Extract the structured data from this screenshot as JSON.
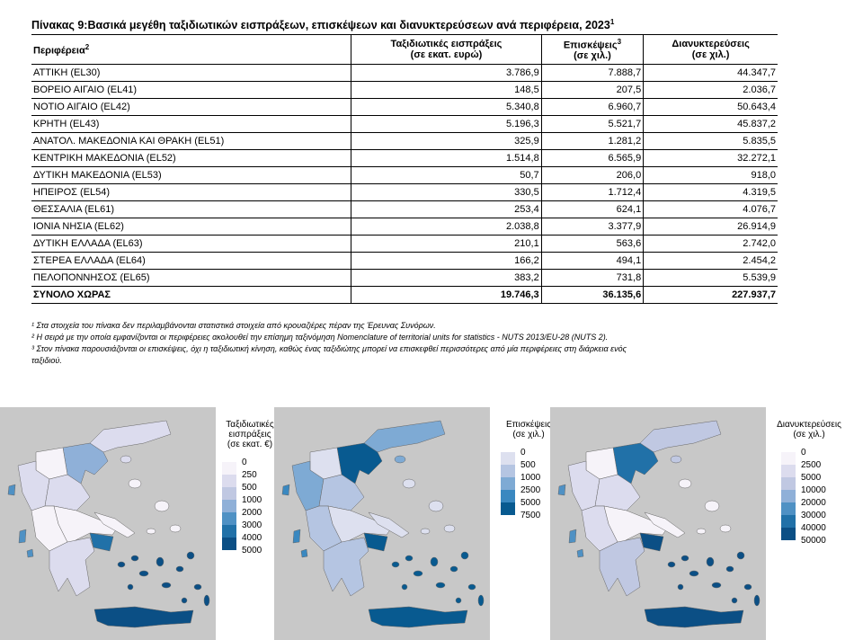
{
  "title": "Πίνακας 9:Βασικά μεγέθη ταξιδιωτικών εισπράξεων, επισκέψεων και διανυκτερεύσεων ανά περιφέρεια, 2023",
  "title_sup": "1",
  "table": {
    "header": [
      {
        "text": "Περιφέρεια",
        "sup": "2"
      },
      {
        "lines": [
          "Ταξιδιωτικές εισπράξεις",
          "(σε εκατ. ευρώ)"
        ]
      },
      {
        "lines": [
          "Επισκέψεις",
          "(σε χιλ.)"
        ],
        "sup": "3"
      },
      {
        "lines": [
          "Διανυκτερεύσεις",
          "(σε χιλ.)"
        ]
      }
    ],
    "rows": [
      [
        "ΑΤΤΙΚΗ (EL30)",
        "3.786,9",
        "7.888,7",
        "44.347,7"
      ],
      [
        "ΒΟΡΕΙΟ ΑΙΓΑΙΟ (EL41)",
        "148,5",
        "207,5",
        "2.036,7"
      ],
      [
        "ΝΟΤΙΟ ΑΙΓΑΙΟ (EL42)",
        "5.340,8",
        "6.960,7",
        "50.643,4"
      ],
      [
        "ΚΡΗΤΗ (EL43)",
        "5.196,3",
        "5.521,7",
        "45.837,2"
      ],
      [
        "ΑΝΑΤΟΛ. ΜΑΚΕΔΟΝΙΑ ΚΑΙ ΘΡΑΚΗ (EL51)",
        "325,9",
        "1.281,2",
        "5.835,5"
      ],
      [
        "ΚΕΝΤΡΙΚΗ ΜΑΚΕΔΟΝΙΑ (EL52)",
        "1.514,8",
        "6.565,9",
        "32.272,1"
      ],
      [
        "ΔΥΤΙΚΗ ΜΑΚΕΔΟΝΙΑ (EL53)",
        "50,7",
        "206,0",
        "918,0"
      ],
      [
        "ΗΠΕΙΡΟΣ (EL54)",
        "330,5",
        "1.712,4",
        "4.319,5"
      ],
      [
        "ΘΕΣΣΑΛΙΑ (EL61)",
        "253,4",
        "624,1",
        "4.076,7"
      ],
      [
        "ΙΟΝΙΑ ΝΗΣΙΑ (EL62)",
        "2.038,8",
        "3.377,9",
        "26.914,9"
      ],
      [
        "ΔΥΤΙΚΗ ΕΛΛΑΔΑ (EL63)",
        "210,1",
        "563,6",
        "2.742,0"
      ],
      [
        "ΣΤΕΡΕΑ ΕΛΛΑΔΑ (EL64)",
        "166,2",
        "494,1",
        "2.454,2"
      ],
      [
        "ΠΕΛΟΠΟΝΝΗΣΟΣ (EL65)",
        "383,2",
        "731,8",
        "5.539,9"
      ]
    ],
    "total": [
      "ΣΥΝΟΛΟ ΧΩΡΑΣ",
      "19.746,3",
      "36.135,6",
      "227.937,7"
    ]
  },
  "footnotes": [
    "¹ Στα στοιχεία του πίνακα  δεν περιλαμβάνονται στατιστικά στοιχεία από κρουαζιέρες πέραν της Έρευνας Συνόρων.",
    "² Η σειρά με την οποία εμφανίζονται οι περιφέρειες ακολουθεί την επίσημη ταξινόμηση Nomenclature of territorial units for statistics - NUTS 2013/EU-28 (NUTS 2).",
    "³ Στον πίνακα παρουσιάζονται οι επισκέψεις, όχι η ταξιδιωτική κίνηση, καθώς ένας ταξιδιώτης μπορεί να επισκεφθεί περισσότερες από μία περιφέρειες στη διάρκεια ενός",
    "ταξιδιού."
  ],
  "maps": [
    {
      "title_lines": [
        "Ταξιδιωτικές",
        "εισπράξεις",
        "(σε εκατ. €)"
      ],
      "legend_labels": [
        0,
        250,
        500,
        1000,
        2000,
        3000,
        4000,
        5000
      ],
      "colors": [
        "#f6f3f9",
        "#dcdcee",
        "#c0c8e2",
        "#8fb0d8",
        "#4f91c4",
        "#2171a8",
        "#0b4f85"
      ]
    },
    {
      "title_lines": [
        "Επισκέψεις",
        "(σε χιλ.)"
      ],
      "legend_labels": [
        0,
        500,
        1000,
        2500,
        5000,
        7500
      ],
      "colors": [
        "#dde0ef",
        "#b5c5e2",
        "#7eaad4",
        "#3a88c0",
        "#085a90"
      ]
    },
    {
      "title_lines": [
        "Διανυκτερεύσεις",
        "(σε χιλ.)"
      ],
      "legend_labels": [
        0,
        2500,
        5000,
        10000,
        20000,
        30000,
        40000,
        50000
      ],
      "colors": [
        "#f6f3f9",
        "#dcdcee",
        "#c0c8e2",
        "#8fb0d8",
        "#4f91c4",
        "#2171a8",
        "#0b4f85"
      ]
    }
  ]
}
